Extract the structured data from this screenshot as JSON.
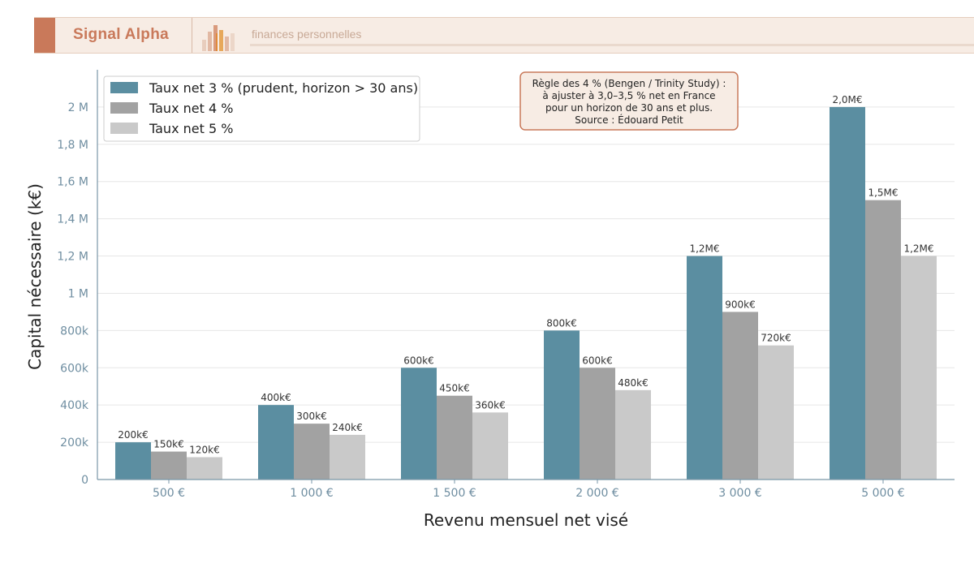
{
  "brand": {
    "name": "Signal Alpha",
    "tagline": "finances personnelles",
    "colors": {
      "accent": "#c9795a",
      "band": "#f7ece4"
    }
  },
  "chart_data": {
    "type": "bar",
    "title": "",
    "xlabel": "Revenu mensuel net visé",
    "ylabel": "Capital nécessaire (k€)",
    "categories": [
      "500 €",
      "1 000 €",
      "1 500 €",
      "2 000 €",
      "3 000 €",
      "5 000 €"
    ],
    "series": [
      {
        "name": "Taux net 3 % (prudent, horizon > 30 ans)",
        "color": "#5b8ea1",
        "values": [
          200000,
          400000,
          600000,
          800000,
          1200000,
          2000000
        ],
        "labels": [
          "200k€",
          "400k€",
          "600k€",
          "800k€",
          "1,2M€",
          "2,0M€"
        ]
      },
      {
        "name": "Taux net 4 %",
        "color": "#a2a2a2",
        "values": [
          150000,
          300000,
          450000,
          600000,
          900000,
          1500000
        ],
        "labels": [
          "150k€",
          "300k€",
          "450k€",
          "600k€",
          "900k€",
          "1,5M€"
        ]
      },
      {
        "name": "Taux net 5 %",
        "color": "#c9c9c9",
        "values": [
          120000,
          240000,
          360000,
          480000,
          720000,
          1200000
        ],
        "labels": [
          "120k€",
          "240k€",
          "360k€",
          "480k€",
          "720k€",
          "1,2M€"
        ]
      }
    ],
    "ylim": [
      0,
      2200000
    ],
    "yticks": [
      0,
      200000,
      400000,
      600000,
      800000,
      1000000,
      1200000,
      1400000,
      1600000,
      1800000,
      2000000
    ],
    "ytick_labels": [
      "0",
      "200k",
      "400k",
      "600k",
      "800k",
      "1 M",
      "1,2 M",
      "1,4 M",
      "1,6 M",
      "1,8 M",
      "2 M"
    ],
    "grid": true,
    "legend_position": "top-left",
    "annotation": {
      "lines": [
        "Règle des 4 % (Bengen / Trinity Study) :",
        "à ajuster à 3,0–3,5 % net en France",
        "pour un horizon de 30 ans et plus.",
        "Source : Édouard Petit"
      ],
      "border_color": "#c9795a",
      "background": "#f7ece4"
    }
  }
}
